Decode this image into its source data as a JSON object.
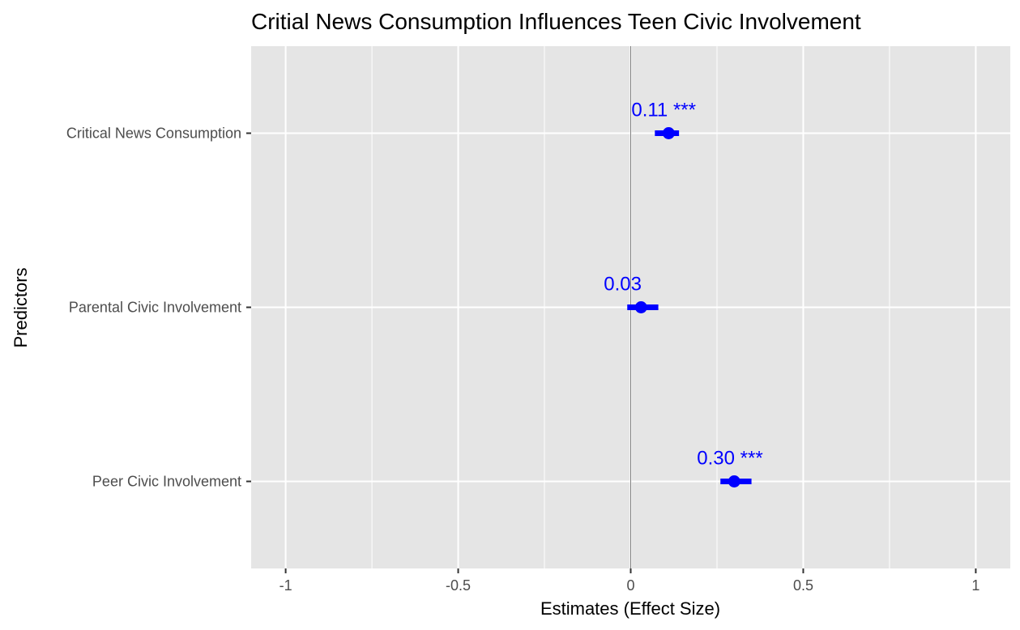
{
  "chart_data": {
    "type": "scatter",
    "subtype": "coefficient-plot",
    "title": "Critial News Consumption Influences Teen Civic Involvement",
    "xlabel": "Estimates (Effect Size)",
    "ylabel": "Predictors",
    "xlim": [
      -1.1,
      1.1
    ],
    "x_ticks": [
      -1,
      -0.5,
      0,
      0.5,
      1
    ],
    "x_tick_labels": [
      "-1",
      "-0.5",
      "0",
      "0.5",
      "1"
    ],
    "x_minor_ticks": [
      -0.75,
      -0.25,
      0.25,
      0.75
    ],
    "reference_line_x": 0,
    "grid": true,
    "point_color": "#0000ff",
    "label_color": "#0000ff",
    "panel_background": "#e5e5e5",
    "gridline_color": "#ffffff",
    "reference_line_color": "#808080",
    "predictors": [
      {
        "name": "Critical News Consumption",
        "estimate": 0.11,
        "ci": [
          0.07,
          0.14
        ],
        "label": "0.11 ***"
      },
      {
        "name": "Parental Civic Involvement",
        "estimate": 0.03,
        "ci": [
          -0.01,
          0.08
        ],
        "label": "0.03"
      },
      {
        "name": "Peer Civic Involvement",
        "estimate": 0.3,
        "ci": [
          0.26,
          0.35
        ],
        "label": "0.30 ***"
      }
    ]
  }
}
